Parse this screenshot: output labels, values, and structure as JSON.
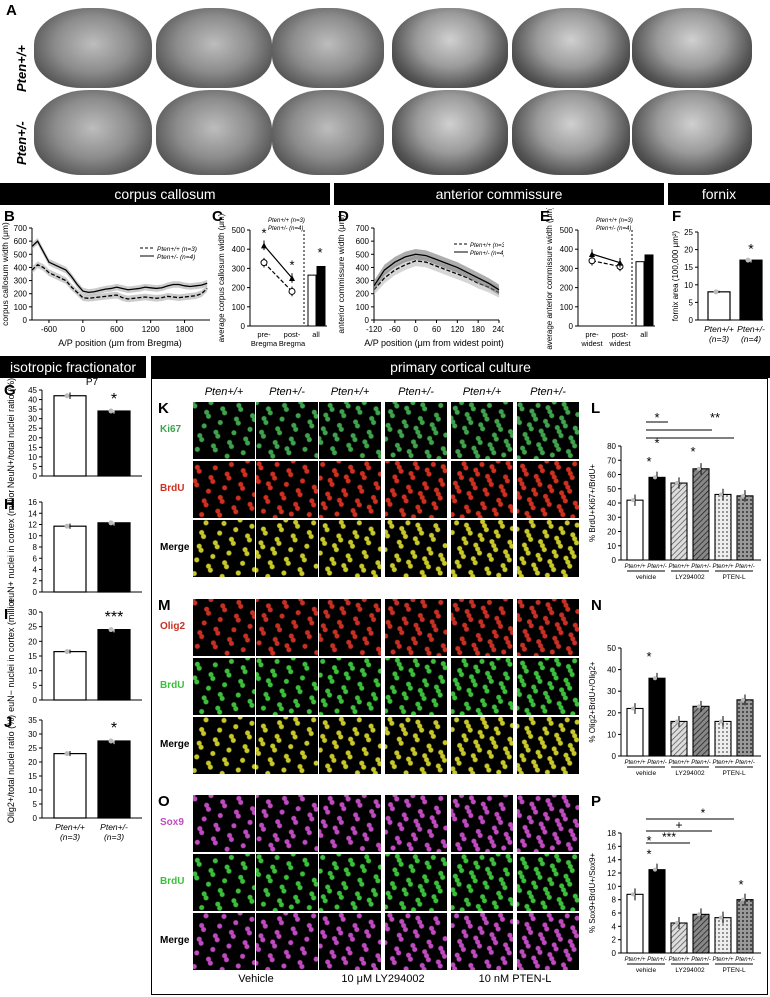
{
  "panel_letters": {
    "A": "A",
    "B": "B",
    "C": "C",
    "D": "D",
    "E": "E",
    "F": "F",
    "G": "G",
    "H": "H",
    "I": "I",
    "J": "J",
    "K": "K",
    "L": "L",
    "M": "M",
    "N": "N",
    "O": "O",
    "P": "P"
  },
  "sections": {
    "cc": "corpus callosum",
    "ac": "anterior commissure",
    "fornix": "fornix",
    "iso": "isotropic fractionator",
    "culture": "primary cortical culture"
  },
  "genotypes": {
    "wt": "Pten+/+",
    "het": "Pten+/-"
  },
  "panelA": {
    "row1": "Pten+/+",
    "row2": "Pten+/-"
  },
  "panelB": {
    "ylabel": "corpus callosum width (μm)",
    "xlabel": "A/P position (μm from Bregma)",
    "legend": [
      "Pten+/+ (n=3)",
      "Pten+/- (n=4)"
    ],
    "yticks": [
      "0",
      "100",
      "200",
      "300",
      "400",
      "500",
      "600",
      "700"
    ],
    "xticks": [
      "-600",
      "0",
      "600",
      "1200",
      "1800"
    ]
  },
  "panelC": {
    "ylabel": "average corpus callosum width (μm)",
    "yticks": [
      "0",
      "100",
      "200",
      "300",
      "400",
      "500"
    ],
    "xticks": [
      "pre-Bregma",
      "post-Bregma",
      "all"
    ],
    "legend": [
      "Pten+/+ (n=3)",
      "Pten+/- (n=4)"
    ],
    "star": "*"
  },
  "panelD": {
    "ylabel": "anterior commissure width (μm)",
    "xlabel": "A/P position (μm from widest point)",
    "legend": [
      "Pten+/+ (n=3)",
      "Pten+/- (n=4)"
    ],
    "yticks": [
      "0",
      "100",
      "200",
      "300",
      "400",
      "500",
      "600",
      "700"
    ],
    "xticks": [
      "-120",
      "-60",
      "0",
      "60",
      "120",
      "180",
      "240"
    ]
  },
  "panelE": {
    "ylabel": "average anterior commissure width (μm)",
    "yticks": [
      "0",
      "100",
      "200",
      "300",
      "400",
      "500"
    ],
    "xticks": [
      "pre-widest",
      "post-widest",
      "all"
    ],
    "legend": [
      "Pten+/+ (n=3)",
      "Pten+/- (n=4)"
    ]
  },
  "panelF": {
    "ylabel": "fornix area (100,000 μm²)",
    "yticks": [
      "0",
      "5",
      "10",
      "15",
      "20",
      "25"
    ],
    "xticks": [
      "Pten+/+ (n=3)",
      "Pten+/- (n=4)"
    ],
    "star": "*"
  },
  "panelG": {
    "title": "P7",
    "ylabel": "NeuN+/total nuclei ratio (%)",
    "yticks": [
      "0",
      "5",
      "10",
      "15",
      "20",
      "25",
      "30",
      "35",
      "40",
      "45"
    ],
    "star": "*"
  },
  "panelH": {
    "ylabel": "NeuN+ nuclei in cortex (million)",
    "yticks": [
      "0",
      "2",
      "4",
      "6",
      "8",
      "10",
      "12",
      "14",
      "16"
    ]
  },
  "panelI": {
    "ylabel": "NeuN− nuclei in cortex (million)",
    "yticks": [
      "0",
      "5",
      "10",
      "15",
      "20",
      "25",
      "30"
    ],
    "star": "***"
  },
  "panelJ": {
    "ylabel": "Olig2+/total nuclei ratio (%)",
    "yticks": [
      "0",
      "5",
      "10",
      "15",
      "20",
      "25",
      "30",
      "35"
    ],
    "star": "*",
    "xticks": [
      "Pten+/+ (n=3)",
      "Pten+/- (n=3)"
    ]
  },
  "culture": {
    "col_headers": [
      "Pten+/+",
      "Pten+/-",
      "Pten+/+",
      "Pten+/-",
      "Pten+/+",
      "Pten+/-"
    ],
    "K_rows": [
      "Ki67",
      "BrdU",
      "Merge"
    ],
    "M_rows": [
      "Olig2",
      "BrdU",
      "Merge"
    ],
    "O_rows": [
      "Sox9",
      "BrdU",
      "Merge"
    ],
    "bottom": [
      "Vehicle",
      "10 μM LY294002",
      "10 nM PTEN-L"
    ]
  },
  "panelL": {
    "ylabel": "% BrdU+Ki67+/BrdU+",
    "yticks": [
      "0",
      "10",
      "20",
      "30",
      "40",
      "50",
      "60",
      "70",
      "80"
    ],
    "groups": [
      "vehicle",
      "LY294002",
      "PTEN-L"
    ],
    "sig": [
      "*",
      "*",
      "*",
      "*",
      "**"
    ]
  },
  "panelN": {
    "ylabel": "% Olig2+BrdU+/Olig2+",
    "yticks": [
      "0",
      "10",
      "20",
      "30",
      "40",
      "50"
    ],
    "groups": [
      "vehicle",
      "LY294002",
      "PTEN-L"
    ],
    "sig": [
      "*"
    ]
  },
  "panelP": {
    "ylabel": "% Sox9+BrdU+/Sox9+",
    "yticks": [
      "0",
      "2",
      "4",
      "6",
      "8",
      "10",
      "12",
      "14",
      "16",
      "18"
    ],
    "groups": [
      "vehicle",
      "LY294002",
      "PTEN-L"
    ],
    "sig": [
      "*",
      "*",
      "***",
      "+",
      "*",
      "*"
    ]
  },
  "chart_data": [
    {
      "type": "line",
      "panel": "B",
      "x": [
        -900,
        -800,
        -700,
        -600,
        -500,
        -400,
        -300,
        -200,
        -100,
        0,
        100,
        200,
        300,
        400,
        500,
        600,
        700,
        800,
        900,
        1000,
        1100,
        1200,
        1300,
        1400,
        1500,
        1600,
        1700,
        1800,
        1900,
        2000,
        2100,
        2200
      ],
      "series": [
        {
          "name": "Pten+/+ (n=3)",
          "values": [
            380,
            420,
            400,
            360,
            340,
            320,
            300,
            250,
            210,
            170,
            165,
            170,
            175,
            180,
            185,
            190,
            170,
            160,
            165,
            170,
            175,
            170,
            165,
            170,
            180,
            175,
            170,
            175,
            180,
            185,
            200,
            240
          ]
        },
        {
          "name": "Pten+/- (n=4)",
          "values": [
            560,
            600,
            520,
            440,
            420,
            400,
            380,
            330,
            270,
            220,
            210,
            215,
            225,
            235,
            240,
            250,
            240,
            230,
            235,
            240,
            250,
            245,
            240,
            245,
            260,
            270,
            270,
            260,
            255,
            260,
            265,
            280
          ]
        }
      ],
      "xlabel": "A/P position (μm from Bregma)",
      "ylabel": "corpus callosum width (μm)",
      "ylim": [
        0,
        700
      ]
    },
    {
      "type": "line",
      "panel": "C",
      "categories": [
        "pre-Bregma",
        "post-Bregma"
      ],
      "series": [
        {
          "name": "Pten+/+ (n=3)",
          "values": [
            330,
            180
          ]
        },
        {
          "name": "Pten+/- (n=4)",
          "values": [
            420,
            250
          ]
        }
      ],
      "bars": {
        "categories": [
          "all"
        ],
        "Pten+/+": 265,
        "Pten+/-": 310
      },
      "ylim": [
        0,
        500
      ]
    },
    {
      "type": "line",
      "panel": "D",
      "x": [
        -120,
        -90,
        -60,
        -30,
        0,
        30,
        60,
        90,
        120,
        150,
        180,
        210,
        240
      ],
      "series": [
        {
          "name": "Pten+/+ (n=3)",
          "values": [
            230,
            320,
            380,
            420,
            450,
            440,
            410,
            380,
            350,
            320,
            280,
            250,
            210
          ]
        },
        {
          "name": "Pten+/- (n=4)",
          "values": [
            260,
            380,
            440,
            480,
            500,
            490,
            460,
            430,
            400,
            360,
            320,
            280,
            230
          ]
        }
      ],
      "ylim": [
        0,
        700
      ]
    },
    {
      "type": "line",
      "panel": "E",
      "categories": [
        "pre-widest",
        "post-widest"
      ],
      "series": [
        {
          "name": "Pten+/+ (n=3)",
          "values": [
            340,
            310
          ]
        },
        {
          "name": "Pten+/- (n=4)",
          "values": [
            375,
            330
          ]
        }
      ],
      "bars": {
        "categories": [
          "all"
        ],
        "Pten+/+": 335,
        "Pten+/-": 370
      },
      "ylim": [
        0,
        500
      ]
    },
    {
      "type": "bar",
      "panel": "F",
      "categories": [
        "Pten+/+",
        "Pten+/-"
      ],
      "values": [
        8,
        17
      ],
      "ylim": [
        0,
        25
      ]
    },
    {
      "type": "bar",
      "panel": "G",
      "categories": [
        "Pten+/+",
        "Pten+/-"
      ],
      "values": [
        42,
        34
      ],
      "ylim": [
        0,
        45
      ]
    },
    {
      "type": "bar",
      "panel": "H",
      "categories": [
        "Pten+/+",
        "Pten+/-"
      ],
      "values": [
        11.7,
        12.3
      ],
      "ylim": [
        0,
        16
      ]
    },
    {
      "type": "bar",
      "panel": "I",
      "categories": [
        "Pten+/+",
        "Pten+/-"
      ],
      "values": [
        16.5,
        24
      ],
      "ylim": [
        0,
        30
      ]
    },
    {
      "type": "bar",
      "panel": "J",
      "categories": [
        "Pten+/+",
        "Pten+/-"
      ],
      "values": [
        23,
        27.5
      ],
      "ylim": [
        0,
        35
      ]
    },
    {
      "type": "bar",
      "panel": "L",
      "categories": [
        "vehicle Pten+/+",
        "vehicle Pten+/-",
        "LY294002 Pten+/+",
        "LY294002 Pten+/-",
        "PTEN-L Pten+/+",
        "PTEN-L Pten+/-"
      ],
      "values": [
        42,
        58,
        54,
        64,
        46,
        45
      ],
      "ylim": [
        0,
        80
      ]
    },
    {
      "type": "bar",
      "panel": "N",
      "categories": [
        "vehicle Pten+/+",
        "vehicle Pten+/-",
        "LY294002 Pten+/+",
        "LY294002 Pten+/-",
        "PTEN-L Pten+/+",
        "PTEN-L Pten+/-"
      ],
      "values": [
        22,
        36,
        16,
        23,
        16,
        26
      ],
      "ylim": [
        0,
        50
      ]
    },
    {
      "type": "bar",
      "panel": "P",
      "categories": [
        "vehicle Pten+/+",
        "vehicle Pten+/-",
        "LY294002 Pten+/+",
        "LY294002 Pten+/-",
        "PTEN-L Pten+/+",
        "PTEN-L Pten+/-"
      ],
      "values": [
        8.8,
        12.5,
        4.5,
        5.8,
        5.3,
        8.0
      ],
      "ylim": [
        0,
        18
      ]
    }
  ],
  "colors": {
    "ki67": "#3fa34d",
    "brdu_red": "#d03020",
    "brdu_green": "#3cc03c",
    "olig2": "#c83024",
    "sox9": "#c04bc0",
    "merge_yellow": "#c8c82a"
  }
}
